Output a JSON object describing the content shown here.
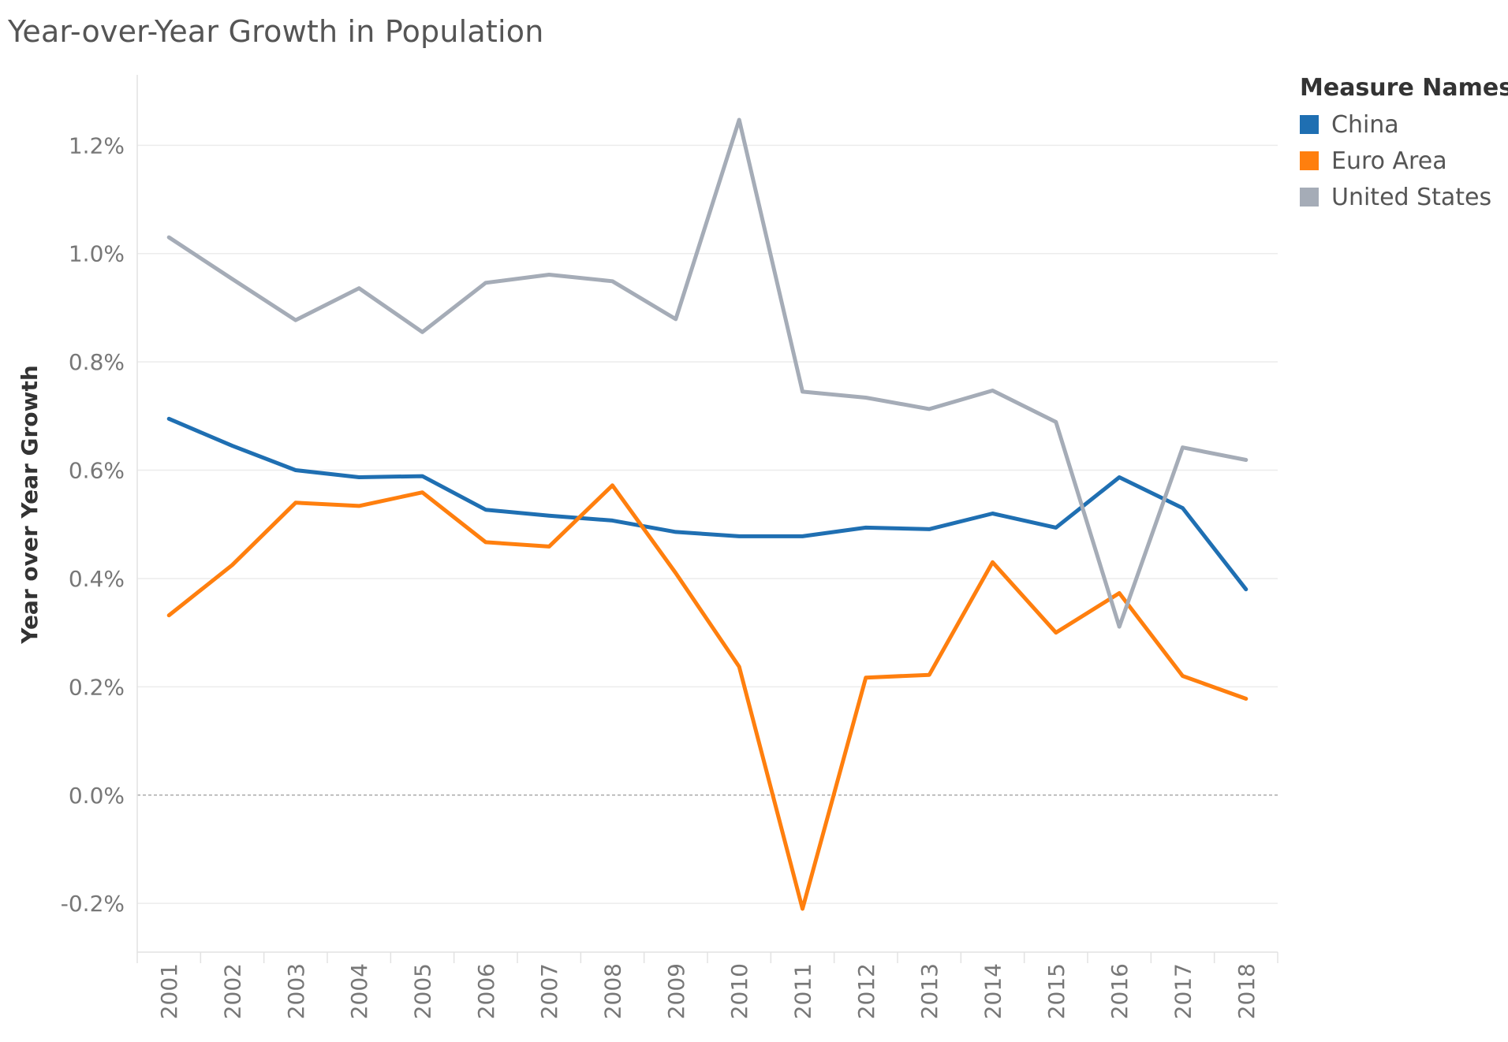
{
  "chart_data": {
    "type": "line",
    "title": "Year-over-Year Growth in Population",
    "xlabel": "",
    "ylabel": "Year over Year Growth",
    "x": [
      "2001",
      "2002",
      "2003",
      "2004",
      "2005",
      "2006",
      "2007",
      "2008",
      "2009",
      "2010",
      "2011",
      "2012",
      "2013",
      "2014",
      "2015",
      "2016",
      "2017",
      "2018"
    ],
    "ylim": [
      -0.29,
      1.33
    ],
    "yticks": [
      -0.2,
      0.0,
      0.2,
      0.4,
      0.6,
      0.8,
      1.0,
      1.2
    ],
    "ytick_labels": [
      "-0.2%",
      "0.0%",
      "0.2%",
      "0.4%",
      "0.6%",
      "0.8%",
      "1.0%",
      "1.2%"
    ],
    "grid": true,
    "legend_title": "Measure Names",
    "legend_position": "top-right",
    "series": [
      {
        "name": "China",
        "color": "#1f6fb2",
        "values": [
          0.695,
          0.645,
          0.6,
          0.587,
          0.589,
          0.527,
          0.516,
          0.507,
          0.486,
          0.478,
          0.478,
          0.494,
          0.491,
          0.52,
          0.494,
          0.587,
          0.53,
          0.38
        ]
      },
      {
        "name": "Euro Area",
        "color": "#ff7f0e",
        "values": [
          0.332,
          0.425,
          0.54,
          0.534,
          0.559,
          0.467,
          0.459,
          0.572,
          0.41,
          0.237,
          -0.21,
          0.217,
          0.222,
          0.43,
          0.3,
          0.373,
          0.22,
          0.178
        ]
      },
      {
        "name": "United States",
        "color": "#a5acb7",
        "values": [
          1.03,
          0.953,
          0.877,
          0.936,
          0.855,
          0.946,
          0.961,
          0.949,
          0.879,
          1.247,
          0.745,
          0.734,
          0.713,
          0.747,
          0.689,
          0.311,
          0.642,
          0.619
        ]
      }
    ]
  }
}
